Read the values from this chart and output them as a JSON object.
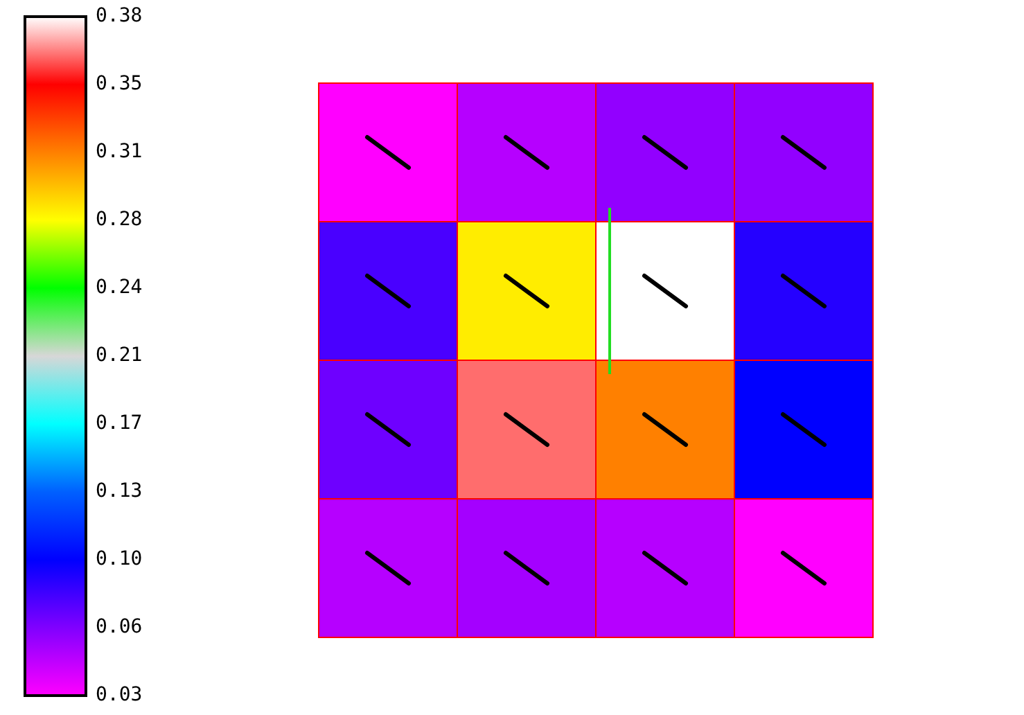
{
  "chart_data": {
    "type": "heatmap",
    "categories": [
      null,
      null,
      null,
      null
    ],
    "y_categories": [
      null,
      null,
      null,
      null
    ],
    "cells": [
      [
        0.03,
        0.05,
        0.06,
        0.06
      ],
      [
        0.08,
        0.28,
        0.38,
        0.09
      ],
      [
        0.07,
        0.36,
        0.31,
        0.1
      ],
      [
        0.05,
        0.055,
        0.05,
        0.03
      ]
    ],
    "clim": [
      0.03,
      0.38
    ],
    "cticks": [
      {
        "value": 0.03,
        "label": "0.03"
      },
      {
        "value": 0.065,
        "label": "0.06"
      },
      {
        "value": 0.1,
        "label": "0.10"
      },
      {
        "value": 0.135,
        "label": "0.13"
      },
      {
        "value": 0.17,
        "label": "0.17"
      },
      {
        "value": 0.205,
        "label": "0.21"
      },
      {
        "value": 0.24,
        "label": "0.24"
      },
      {
        "value": 0.275,
        "label": "0.28"
      },
      {
        "value": 0.31,
        "label": "0.31"
      },
      {
        "value": 0.345,
        "label": "0.35"
      },
      {
        "value": 0.38,
        "label": "0.38"
      }
    ]
  }
}
